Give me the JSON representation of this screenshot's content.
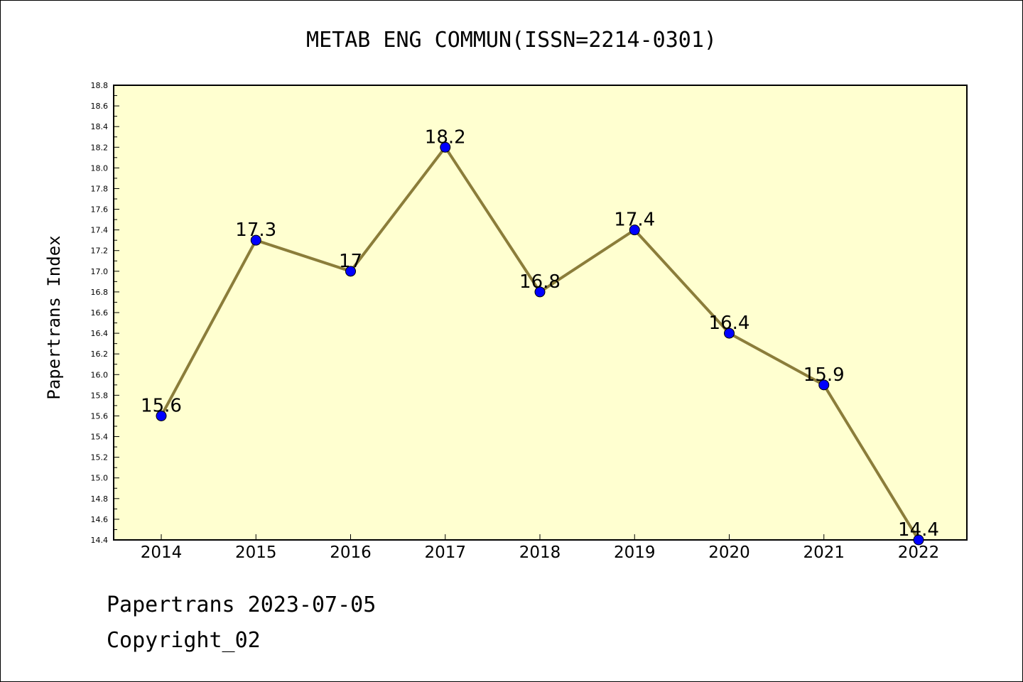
{
  "chart_data": {
    "type": "line",
    "title": "METAB ENG COMMUN(ISSN=2214-0301)",
    "xlabel": "",
    "ylabel": "Papertrans Index",
    "categories": [
      "2014",
      "2015",
      "2016",
      "2017",
      "2018",
      "2019",
      "2020",
      "2021",
      "2022"
    ],
    "values": [
      15.6,
      17.3,
      17.0,
      18.2,
      16.8,
      17.4,
      16.4,
      15.9,
      14.4
    ],
    "data_labels": [
      "15.6",
      "17.3",
      "17",
      "18.2",
      "16.8",
      "17.4",
      "16.4",
      "15.9",
      "14.4"
    ],
    "ylim": [
      14.4,
      18.8
    ],
    "yticks": [
      "14.4",
      "14.6",
      "14.8",
      "15.0",
      "15.2",
      "15.4",
      "15.6",
      "15.8",
      "16.0",
      "16.2",
      "16.4",
      "16.6",
      "16.8",
      "17.0",
      "17.2",
      "17.4",
      "17.6",
      "17.8",
      "18.0",
      "18.2",
      "18.4",
      "18.6",
      "18.8"
    ],
    "grid": false,
    "colors": {
      "plot_background": "#ffffd0",
      "line": "#8b7d3a",
      "marker": "#0000ff"
    }
  },
  "footer": {
    "line1": "Papertrans 2023-07-05",
    "line2": "Copyright_02"
  }
}
